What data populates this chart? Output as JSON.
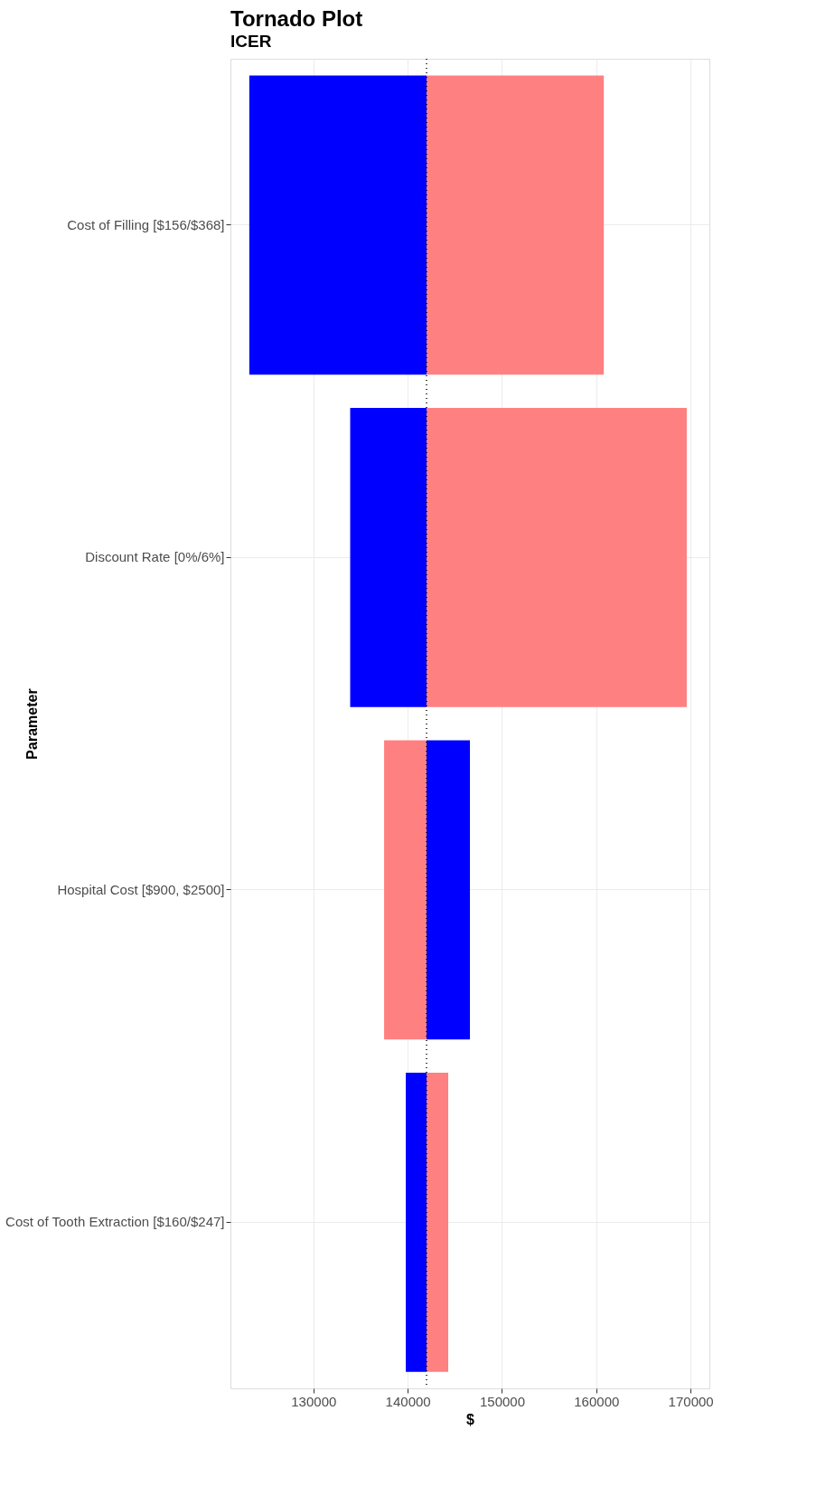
{
  "chart_data": {
    "type": "bar",
    "orientation": "horizontal",
    "title": "Tornado Plot",
    "subtitle": "ICER",
    "xlabel": "$",
    "ylabel": "Parameter",
    "categories": [
      "Cost of Filling [$156/$368]",
      "Discount Rate [0%/6%]",
      "Hospital Cost [$900, $2500]",
      "Cost of Tooth Extraction [$160/$247]"
    ],
    "series": [
      {
        "color": "#0000ff",
        "base": [
          142000,
          142000,
          142000,
          142000
        ],
        "values": [
          -18800,
          -8100,
          4600,
          -2200
        ]
      },
      {
        "color": "#ff8080",
        "base": [
          142000,
          142000,
          142000,
          142000
        ],
        "values": [
          18800,
          27600,
          -4500,
          2300
        ]
      }
    ],
    "xlim": [
      121200,
      172000
    ],
    "xticks": [
      130000,
      140000,
      150000,
      160000,
      170000
    ],
    "ref_lines": [
      {
        "axis": "x",
        "value": 142000,
        "line_style": "dotted"
      }
    ],
    "grid": true,
    "legend": false
  }
}
